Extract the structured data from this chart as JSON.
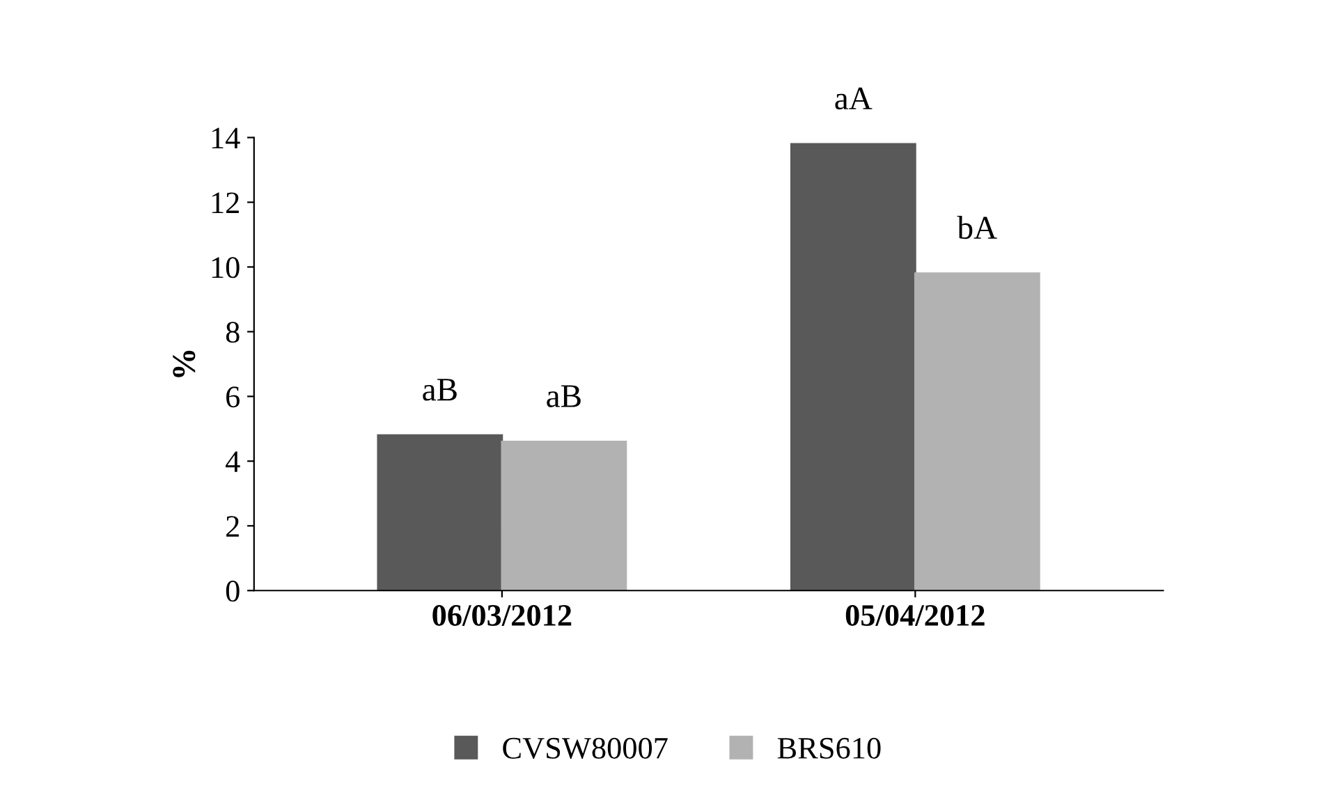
{
  "chart_data": {
    "type": "bar",
    "ylabel": "%",
    "categories": [
      "06/03/2012",
      "05/04/2012"
    ],
    "series": [
      {
        "name": "CVSW80007",
        "color": "#595959",
        "values": [
          4.8,
          13.8
        ]
      },
      {
        "name": "BRS610",
        "color": "#b2b2b2",
        "values": [
          4.6,
          9.8
        ]
      }
    ],
    "ylim": [
      0,
      14
    ],
    "yticks": [
      0,
      2,
      4,
      6,
      8,
      10,
      12,
      14
    ],
    "grid": false,
    "legend": "bottom",
    "annotations": [
      {
        "text": "aB",
        "x": "06/03/2012",
        "y": 4.8
      },
      {
        "text": "aB",
        "x": "06/03/2012",
        "y": 4.6
      },
      {
        "text": "aA",
        "x": "05/04/2012",
        "y": 13.8
      },
      {
        "text": "bA",
        "x": "05/04/2012",
        "y": 9.8
      }
    ]
  }
}
